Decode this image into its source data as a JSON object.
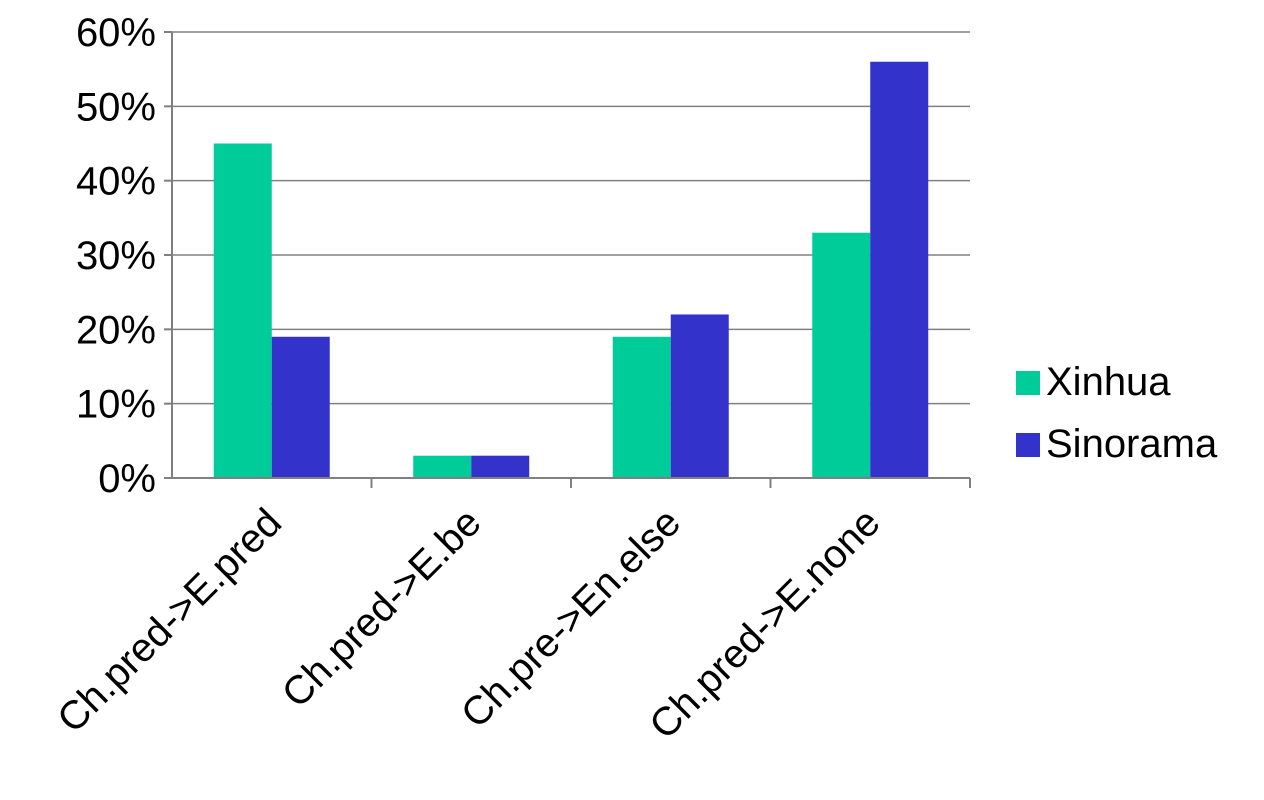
{
  "chart_data": {
    "type": "bar",
    "categories": [
      "Ch.pred->E.pred",
      "Ch.pred->E.be",
      "Ch.pre->En.else",
      "Ch.pred->E.none"
    ],
    "series": [
      {
        "name": "Xinhua",
        "values": [
          45,
          3,
          19,
          33
        ],
        "color": "#00cc99"
      },
      {
        "name": "Sinorama",
        "values": [
          19,
          3,
          22,
          56
        ],
        "color": "#3333cc"
      }
    ],
    "y_ticks": [
      "0%",
      "10%",
      "20%",
      "30%",
      "40%",
      "50%",
      "60%"
    ],
    "ylim": [
      0,
      60
    ],
    "y_unit": "%",
    "grid": true,
    "legend_position": "right",
    "xlabel": "",
    "ylabel": "",
    "title": ""
  }
}
